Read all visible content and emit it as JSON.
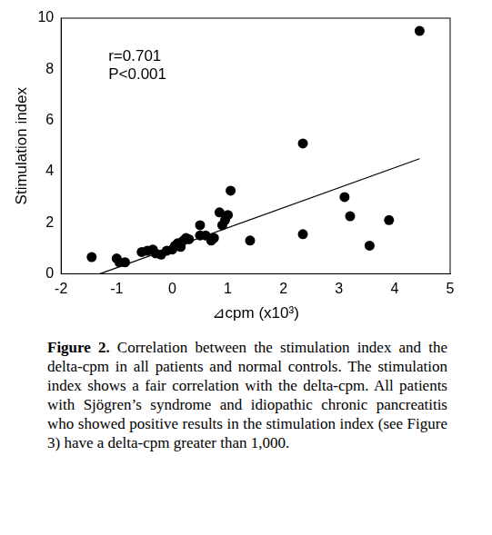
{
  "chart_data": {
    "type": "scatter",
    "x_label": "⊿cpm (x10³)",
    "y_label": "Stimulation index",
    "annotations": [
      "r=0.701",
      "P<0.001"
    ],
    "caption_label": "Figure 2.",
    "caption": "Correlation between the stimulation index and the delta-cpm in all patients and normal controls. The stimulation index shows a fair correlation with the delta-cpm. All patients with Sjögren’s syndrome and idiopathic chronic pancreatitis who showed positive results in the stimulation index (see Figure 3) have a delta-cpm greater than 1,000.",
    "xlim": [
      -2,
      5
    ],
    "xticks": [
      -2,
      -1,
      0,
      1,
      2,
      3,
      4,
      5
    ],
    "ylim": [
      0,
      10
    ],
    "yticks": [
      0,
      2,
      4,
      6,
      8,
      10
    ],
    "grid": false,
    "series": [
      {
        "type": "scatter",
        "marker": "circle",
        "color": "#000000",
        "x": [
          -1.45,
          -1.0,
          -0.95,
          -0.85,
          -0.55,
          -0.45,
          -0.35,
          -0.3,
          -0.2,
          -0.1,
          0.0,
          0.05,
          0.1,
          0.15,
          0.2,
          0.25,
          0.3,
          0.5,
          0.5,
          0.6,
          0.7,
          0.75,
          0.85,
          0.9,
          0.95,
          1.0,
          1.05,
          1.4,
          2.35,
          2.35,
          3.1,
          3.2,
          3.55,
          3.9,
          4.45
        ],
        "values": [
          0.65,
          0.6,
          0.45,
          0.45,
          0.85,
          0.9,
          0.95,
          0.8,
          0.75,
          0.9,
          0.95,
          1.1,
          1.2,
          1.05,
          1.3,
          1.4,
          1.35,
          1.5,
          1.9,
          1.5,
          1.3,
          1.4,
          2.4,
          1.9,
          2.1,
          2.3,
          3.25,
          1.3,
          5.1,
          1.55,
          3.0,
          2.25,
          1.1,
          2.1,
          9.5
        ]
      },
      {
        "type": "line",
        "line_style": "solid",
        "color": "#000000",
        "x": [
          -1.3,
          4.45
        ],
        "values": [
          0,
          4.5
        ]
      }
    ]
  }
}
